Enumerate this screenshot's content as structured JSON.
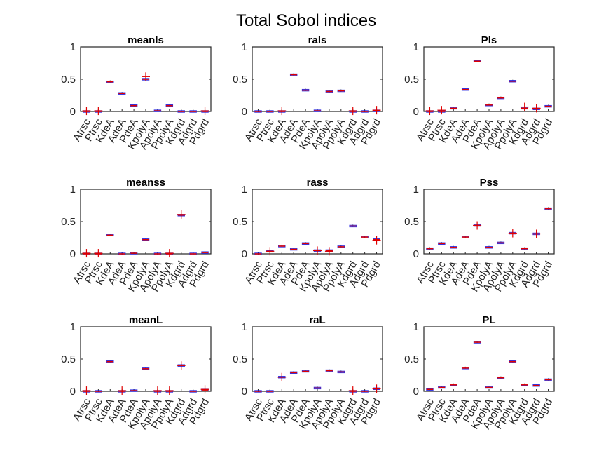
{
  "figure": {
    "title": "Total Sobol indices"
  },
  "colors": {
    "box": "#3030e0",
    "median": "#e00000",
    "outlier": "#e00000",
    "axis": "#262626"
  },
  "chart_data": [
    {
      "type": "box",
      "title": "meanls",
      "categories": [
        "Atrsc",
        "Ptrsc",
        "KdeA",
        "AdeA",
        "PdeA",
        "KpolyA",
        "ApolyA",
        "PpolyA",
        "Kdgrd",
        "Adgrd",
        "Pdgrd"
      ],
      "values": [
        0.0,
        0.0,
        0.46,
        0.28,
        0.09,
        0.5,
        0.01,
        0.09,
        0.0,
        0.0,
        0.0
      ],
      "outliers": [
        [
          0.01
        ],
        [
          0.01
        ],
        [],
        [],
        [],
        [
          0.54
        ],
        [],
        [],
        [],
        [],
        [
          0.01
        ]
      ],
      "ylim": [
        0,
        1
      ],
      "yticks": [
        "0",
        "0.5",
        "1"
      ]
    },
    {
      "type": "box",
      "title": "rals",
      "categories": [
        "Atrsc",
        "Ptrsc",
        "KdeA",
        "AdeA",
        "PdeA",
        "KpolyA",
        "ApolyA",
        "PpolyA",
        "Kdgrd",
        "Adgrd",
        "Pdgrd"
      ],
      "values": [
        0.0,
        0.0,
        0.0,
        0.57,
        0.33,
        0.01,
        0.31,
        0.32,
        0.0,
        0.0,
        0.01
      ],
      "outliers": [
        [],
        [],
        [
          0.01
        ],
        [],
        [],
        [],
        [],
        [],
        [
          0.01
        ],
        [],
        [
          0.02
        ]
      ],
      "ylim": [
        0,
        1
      ],
      "yticks": [
        "0",
        "0.5",
        "1"
      ]
    },
    {
      "type": "box",
      "title": "Pls",
      "categories": [
        "Atrsc",
        "Ptrsc",
        "KdeA",
        "AdeA",
        "PdeA",
        "KpolyA",
        "ApolyA",
        "PpolyA",
        "Kdgrd",
        "Adgrd",
        "Pdgrd"
      ],
      "values": [
        0.0,
        0.0,
        0.05,
        0.34,
        0.78,
        0.1,
        0.21,
        0.47,
        0.05,
        0.04,
        0.08
      ],
      "outliers": [
        [
          0.01
        ],
        [
          0.02
        ],
        [],
        [],
        [],
        [],
        [],
        [],
        [
          0.07
        ],
        [
          0.05
        ],
        []
      ],
      "ylim": [
        0,
        1
      ],
      "yticks": [
        "0",
        "0.5",
        "1"
      ]
    },
    {
      "type": "box",
      "title": "meanss",
      "categories": [
        "Atrsc",
        "Ptrsc",
        "KdeA",
        "AdeA",
        "PdeA",
        "KpolyA",
        "ApolyA",
        "PpolyA",
        "Kdgrd",
        "Adgrd",
        "Pdgrd"
      ],
      "values": [
        0.0,
        0.0,
        0.29,
        0.0,
        0.01,
        0.22,
        0.0,
        0.0,
        0.6,
        0.0,
        0.02
      ],
      "outliers": [
        [
          0.01
        ],
        [
          0.01
        ],
        [],
        [],
        [],
        [],
        [],
        [
          0.01
        ],
        [
          0.61
        ],
        [],
        []
      ],
      "ylim": [
        0,
        1
      ],
      "yticks": [
        "0",
        "0.5",
        "1"
      ]
    },
    {
      "type": "box",
      "title": "rass",
      "categories": [
        "Atrsc",
        "Ptrsc",
        "KdeA",
        "AdeA",
        "PdeA",
        "KpolyA",
        "ApolyA",
        "PpolyA",
        "Kdgrd",
        "Adgrd",
        "Pdgrd"
      ],
      "values": [
        0.0,
        0.04,
        0.12,
        0.07,
        0.16,
        0.05,
        0.05,
        0.11,
        0.43,
        0.26,
        0.22
      ],
      "outliers": [
        [],
        [
          0.04
        ],
        [],
        [],
        [],
        [
          0.05
        ],
        [
          0.04
        ],
        [],
        [],
        [],
        [
          0.21
        ]
      ],
      "ylim": [
        0,
        1
      ],
      "yticks": [
        "0",
        "0.5",
        "1"
      ]
    },
    {
      "type": "box",
      "title": "Pss",
      "categories": [
        "Atrsc",
        "Ptrsc",
        "KdeA",
        "AdeA",
        "PdeA",
        "KpolyA",
        "ApolyA",
        "PpolyA",
        "Kdgrd",
        "Adgrd",
        "Pdgrd"
      ],
      "values": [
        0.08,
        0.16,
        0.1,
        0.26,
        0.44,
        0.1,
        0.17,
        0.32,
        0.08,
        0.31,
        0.7
      ],
      "outliers": [
        [],
        [],
        [],
        [],
        [
          0.44
        ],
        [],
        [],
        [
          0.32
        ],
        [],
        [
          0.31
        ],
        []
      ],
      "ylim": [
        0,
        1
      ],
      "yticks": [
        "0",
        "0.5",
        "1"
      ]
    },
    {
      "type": "box",
      "title": "meanL",
      "categories": [
        "Atrsc",
        "Ptrsc",
        "KdeA",
        "AdeA",
        "PdeA",
        "KpolyA",
        "ApolyA",
        "PpolyA",
        "Kdgrd",
        "Adgrd",
        "Pdgrd"
      ],
      "values": [
        0.0,
        0.0,
        0.46,
        0.0,
        0.01,
        0.35,
        0.0,
        0.0,
        0.4,
        0.0,
        0.02
      ],
      "outliers": [
        [
          0.01
        ],
        [],
        [],
        [
          0.01
        ],
        [],
        [],
        [
          0.01
        ],
        [
          0.01
        ],
        [
          0.4
        ],
        [],
        [
          0.03
        ]
      ],
      "ylim": [
        0,
        1
      ],
      "yticks": [
        "0",
        "0.5",
        "1"
      ]
    },
    {
      "type": "box",
      "title": "raL",
      "categories": [
        "Atrsc",
        "Ptrsc",
        "KdeA",
        "AdeA",
        "PdeA",
        "KpolyA",
        "ApolyA",
        "PpolyA",
        "Kdgrd",
        "Adgrd",
        "Pdgrd"
      ],
      "values": [
        0.0,
        0.0,
        0.22,
        0.29,
        0.31,
        0.05,
        0.32,
        0.3,
        0.0,
        0.0,
        0.04
      ],
      "outliers": [
        [],
        [],
        [
          0.22
        ],
        [],
        [],
        [],
        [],
        [],
        [
          0.01
        ],
        [],
        [
          0.04
        ]
      ],
      "ylim": [
        0,
        1
      ],
      "yticks": [
        "0",
        "0.5",
        "1"
      ]
    },
    {
      "type": "box",
      "title": "PL",
      "categories": [
        "Atrsc",
        "Ptrsc",
        "KdeA",
        "AdeA",
        "PdeA",
        "KpolyA",
        "ApolyA",
        "PpolyA",
        "Kdgrd",
        "Adgrd",
        "Pdgrd"
      ],
      "values": [
        0.03,
        0.06,
        0.1,
        0.36,
        0.76,
        0.06,
        0.21,
        0.46,
        0.1,
        0.09,
        0.18
      ],
      "outliers": [
        [],
        [],
        [],
        [],
        [],
        [],
        [],
        [],
        [],
        [],
        []
      ],
      "ylim": [
        0,
        1
      ],
      "yticks": [
        "0",
        "0.5",
        "1"
      ]
    }
  ]
}
